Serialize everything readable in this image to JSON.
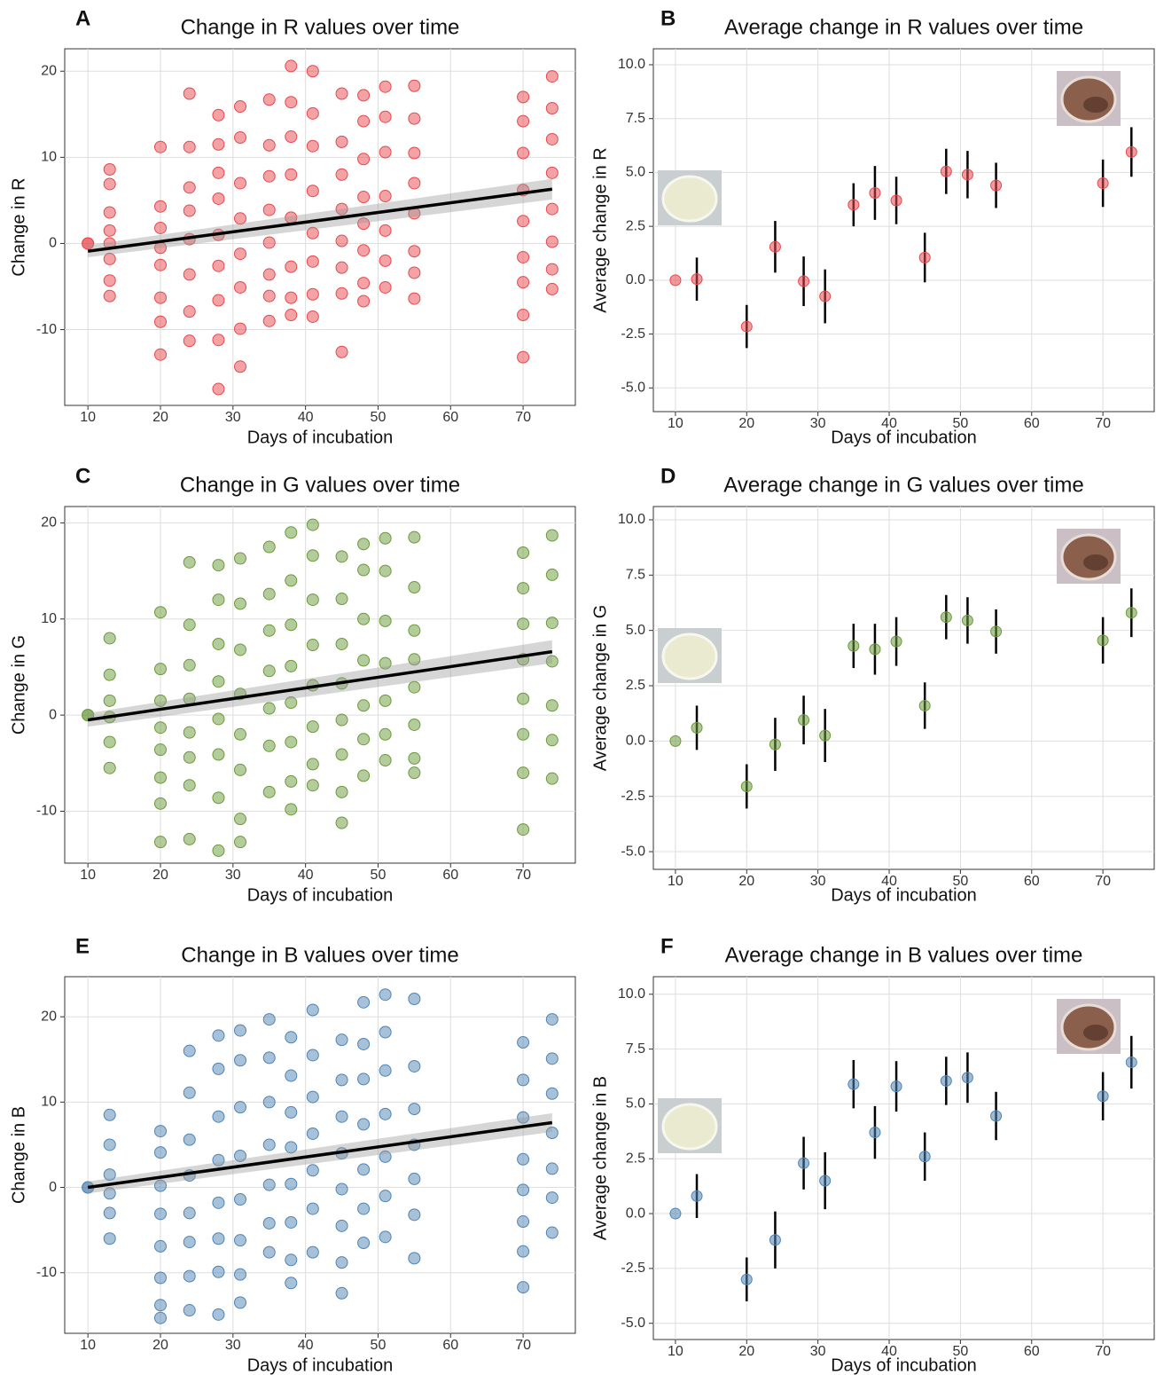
{
  "chart_data": [
    {
      "type": "scatter",
      "panel": "A",
      "title": "Change in R values over time",
      "xlabel": "Days of incubation",
      "ylabel": "Change in R",
      "color": "#e8474c",
      "xlim": [
        6.8,
        77.2
      ],
      "ylim": [
        -18.8,
        22.6
      ],
      "xticks": [
        10,
        20,
        30,
        40,
        50,
        60,
        70
      ],
      "yticks": [
        -10,
        0,
        10,
        20
      ],
      "grid": true,
      "trend": {
        "x": [
          10,
          74
        ],
        "y": [
          -0.9,
          6.3
        ],
        "lower": [
          -1.6,
          5.1
        ],
        "upper": [
          -0.2,
          7.5
        ]
      },
      "groups": [
        {
          "x": 10,
          "y": [
            0,
            0
          ]
        },
        {
          "x": 13,
          "y": [
            8.6,
            6.9,
            3.6,
            1.5,
            0,
            -1.8,
            -4.3,
            -6.1
          ]
        },
        {
          "x": 20,
          "y": [
            11.2,
            4.3,
            1.8,
            -0.5,
            -2.5,
            -6.3,
            -9.1,
            -12.9
          ]
        },
        {
          "x": 24,
          "y": [
            17.4,
            11.2,
            6.5,
            3.8,
            0.5,
            -3.6,
            -7.9,
            -11.3
          ]
        },
        {
          "x": 28,
          "y": [
            14.9,
            11.5,
            8.2,
            5.2,
            1.0,
            -2.6,
            -6.6,
            -11.2,
            -16.9
          ]
        },
        {
          "x": 31,
          "y": [
            15.9,
            12.3,
            7.0,
            2.9,
            -1.2,
            -5.1,
            -9.9,
            -14.3
          ]
        },
        {
          "x": 35,
          "y": [
            16.7,
            11.4,
            7.8,
            3.9,
            0.1,
            -3.6,
            -6.1,
            -9.0
          ]
        },
        {
          "x": 38,
          "y": [
            20.6,
            16.4,
            12.4,
            8.0,
            3.0,
            -2.7,
            -6.3,
            -8.3
          ]
        },
        {
          "x": 41,
          "y": [
            20.0,
            15.1,
            11.3,
            6.1,
            1.2,
            -2.1,
            -5.9,
            -8.5
          ]
        },
        {
          "x": 45,
          "y": [
            17.4,
            11.8,
            8.0,
            4.0,
            0.3,
            -2.8,
            -5.8,
            -12.6
          ]
        },
        {
          "x": 48,
          "y": [
            17.2,
            14.2,
            9.8,
            5.4,
            2.3,
            -0.8,
            -4.6,
            -6.7
          ]
        },
        {
          "x": 51,
          "y": [
            18.2,
            14.7,
            10.6,
            5.5,
            1.5,
            -2.0,
            -5.1
          ]
        },
        {
          "x": 55,
          "y": [
            18.3,
            14.5,
            10.5,
            7.0,
            3.5,
            -0.9,
            -3.4,
            -6.4
          ]
        },
        {
          "x": 70,
          "y": [
            17.0,
            14.2,
            10.5,
            6.2,
            2.6,
            -1.6,
            -4.5,
            -8.3,
            -13.2
          ]
        },
        {
          "x": 74,
          "y": [
            19.4,
            15.7,
            12.1,
            8.2,
            4.0,
            0.2,
            -3.0,
            -5.3
          ]
        }
      ]
    },
    {
      "type": "errorbar",
      "panel": "B",
      "title": "Average change in R values over time",
      "xlabel": "Days of incubation",
      "ylabel": "Average change in R",
      "color": "#e8474c",
      "xlim": [
        6.9,
        77.2
      ],
      "ylim": [
        -6.1,
        10.74
      ],
      "xticks": [
        10,
        20,
        30,
        40,
        50,
        60,
        70
      ],
      "yticks": [
        {
          "value": -5,
          "label": "-5.0"
        },
        -2.5,
        {
          "value": 0,
          "label": "0.0"
        },
        2.5,
        {
          "value": 5,
          "label": "5.0"
        },
        7.5,
        {
          "value": 10,
          "label": "10.0"
        }
      ],
      "grid": true,
      "x": [
        10,
        13,
        20,
        24,
        28,
        31,
        35,
        38,
        41,
        45,
        48,
        51,
        55,
        70,
        74
      ],
      "values": [
        0,
        0.05,
        -2.15,
        1.55,
        -0.05,
        -0.75,
        3.5,
        4.05,
        3.7,
        1.05,
        5.05,
        4.9,
        4.4,
        4.5,
        5.95
      ],
      "errors": [
        0,
        1.0,
        1.0,
        1.2,
        1.15,
        1.25,
        1.0,
        1.25,
        1.1,
        1.15,
        1.05,
        1.1,
        1.05,
        1.1,
        1.15
      ]
    },
    {
      "type": "scatter",
      "panel": "C",
      "title": "Change in G values over time",
      "xlabel": "Days of incubation",
      "ylabel": "Change in G",
      "color": "#6a9a3a",
      "xlim": [
        6.8,
        77.2
      ],
      "ylim": [
        -15.4,
        21.7
      ],
      "xticks": [
        10,
        20,
        30,
        40,
        50,
        60,
        70
      ],
      "yticks": [
        -10,
        0,
        10,
        20
      ],
      "grid": true,
      "trend": {
        "x": [
          10,
          74
        ],
        "y": [
          -0.5,
          6.6
        ],
        "lower": [
          -1.2,
          5.4
        ],
        "upper": [
          0.2,
          7.8
        ]
      },
      "groups": [
        {
          "x": 10,
          "y": [
            0,
            0
          ]
        },
        {
          "x": 13,
          "y": [
            8.0,
            4.2,
            1.5,
            -0.2,
            -2.8,
            -5.5
          ]
        },
        {
          "x": 20,
          "y": [
            10.7,
            4.8,
            1.5,
            -1.3,
            -3.6,
            -6.5,
            -9.2,
            -13.2
          ]
        },
        {
          "x": 24,
          "y": [
            15.9,
            9.4,
            5.2,
            1.7,
            -1.8,
            -4.4,
            -7.3,
            -12.9
          ]
        },
        {
          "x": 28,
          "y": [
            15.6,
            12.0,
            7.4,
            3.5,
            -0.4,
            -4.1,
            -8.6,
            -14.1
          ]
        },
        {
          "x": 31,
          "y": [
            16.3,
            11.6,
            6.8,
            2.2,
            -2.0,
            -5.7,
            -10.8,
            -13.2
          ]
        },
        {
          "x": 35,
          "y": [
            17.5,
            12.6,
            8.8,
            4.6,
            0.7,
            -3.2,
            -8.0
          ]
        },
        {
          "x": 38,
          "y": [
            19.0,
            14.0,
            9.4,
            5.1,
            1.3,
            -2.8,
            -6.9,
            -9.8
          ]
        },
        {
          "x": 41,
          "y": [
            19.8,
            16.6,
            12.0,
            7.3,
            3.1,
            -1.2,
            -5.1,
            -7.3
          ]
        },
        {
          "x": 45,
          "y": [
            16.5,
            12.1,
            7.4,
            3.3,
            -0.5,
            -4.1,
            -8.0,
            -11.2
          ]
        },
        {
          "x": 48,
          "y": [
            17.8,
            15.1,
            10.0,
            5.7,
            1.0,
            -2.5,
            -6.3
          ]
        },
        {
          "x": 51,
          "y": [
            18.4,
            15.0,
            9.8,
            5.4,
            1.5,
            -2.0,
            -4.7
          ]
        },
        {
          "x": 55,
          "y": [
            18.5,
            13.3,
            8.8,
            5.8,
            2.9,
            -1.0,
            -4.5,
            -6.0
          ]
        },
        {
          "x": 70,
          "y": [
            16.9,
            13.2,
            9.5,
            5.8,
            1.7,
            -2.0,
            -6.0,
            -11.9
          ]
        },
        {
          "x": 74,
          "y": [
            18.7,
            14.6,
            9.6,
            5.6,
            1.0,
            -2.6,
            -6.6
          ]
        }
      ]
    },
    {
      "type": "errorbar",
      "panel": "D",
      "title": "Average change in G values over time",
      "xlabel": "Days of incubation",
      "ylabel": "Average change in G",
      "color": "#6a9a3a",
      "xlim": [
        6.9,
        77.2
      ],
      "ylim": [
        -5.8,
        10.6
      ],
      "xticks": [
        10,
        20,
        30,
        40,
        50,
        60,
        70
      ],
      "yticks": [
        {
          "value": -5,
          "label": "-5.0"
        },
        -2.5,
        {
          "value": 0,
          "label": "0.0"
        },
        2.5,
        {
          "value": 5,
          "label": "5.0"
        },
        7.5,
        {
          "value": 10,
          "label": "10.0"
        }
      ],
      "grid": true,
      "x": [
        10,
        13,
        20,
        24,
        28,
        31,
        35,
        38,
        41,
        45,
        48,
        51,
        55,
        70,
        74
      ],
      "values": [
        0,
        0.6,
        -2.05,
        -0.15,
        0.95,
        0.25,
        4.3,
        4.15,
        4.5,
        1.6,
        5.6,
        5.45,
        4.95,
        4.55,
        5.8
      ],
      "errors": [
        0,
        1.0,
        1.0,
        1.2,
        1.1,
        1.2,
        1.0,
        1.15,
        1.1,
        1.05,
        1.0,
        1.05,
        1.0,
        1.05,
        1.1
      ]
    },
    {
      "type": "scatter",
      "panel": "E",
      "title": "Change in B values over time",
      "xlabel": "Days of incubation",
      "ylabel": "Change in B",
      "color": "#4f84b4",
      "xlim": [
        6.8,
        77.2
      ],
      "ylim": [
        -17.1,
        24.7
      ],
      "xticks": [
        10,
        20,
        30,
        40,
        50,
        60,
        70
      ],
      "yticks": [
        -10,
        0,
        10,
        20
      ],
      "grid": true,
      "trend": {
        "x": [
          10,
          74
        ],
        "y": [
          0,
          7.6
        ],
        "lower": [
          -0.7,
          6.5
        ],
        "upper": [
          0.7,
          8.7
        ]
      },
      "groups": [
        {
          "x": 10,
          "y": [
            0,
            0
          ]
        },
        {
          "x": 13,
          "y": [
            8.5,
            5.0,
            1.5,
            -0.7,
            -3.0,
            -6.0
          ]
        },
        {
          "x": 20,
          "y": [
            6.6,
            4.1,
            0.2,
            -3.1,
            -6.9,
            -10.6,
            -13.8,
            -15.3
          ]
        },
        {
          "x": 24,
          "y": [
            16.0,
            11.1,
            5.6,
            1.4,
            -3.0,
            -6.4,
            -10.4,
            -14.4
          ]
        },
        {
          "x": 28,
          "y": [
            17.8,
            13.9,
            8.3,
            3.2,
            -1.8,
            -6.0,
            -9.9,
            -14.9
          ]
        },
        {
          "x": 31,
          "y": [
            18.4,
            14.9,
            9.4,
            3.7,
            -1.4,
            -6.2,
            -10.2,
            -13.5
          ]
        },
        {
          "x": 35,
          "y": [
            19.7,
            15.2,
            10.0,
            5.0,
            0.3,
            -4.2,
            -7.6
          ]
        },
        {
          "x": 38,
          "y": [
            17.6,
            13.1,
            8.8,
            4.7,
            0.4,
            -4.1,
            -8.5,
            -11.2
          ]
        },
        {
          "x": 41,
          "y": [
            20.8,
            15.5,
            10.6,
            6.3,
            2.0,
            -2.5,
            -7.6
          ]
        },
        {
          "x": 45,
          "y": [
            17.3,
            12.6,
            8.3,
            4.0,
            -0.2,
            -4.5,
            -8.8,
            -12.4
          ]
        },
        {
          "x": 48,
          "y": [
            21.7,
            16.8,
            12.7,
            7.4,
            2.1,
            -2.5,
            -6.5
          ]
        },
        {
          "x": 51,
          "y": [
            22.6,
            18.2,
            13.7,
            8.6,
            3.6,
            -1.0,
            -5.8
          ]
        },
        {
          "x": 55,
          "y": [
            22.1,
            14.2,
            9.2,
            5.0,
            1.0,
            -3.2,
            -8.3
          ]
        },
        {
          "x": 70,
          "y": [
            17.0,
            12.6,
            8.2,
            3.3,
            -0.3,
            -4.0,
            -7.5,
            -11.7
          ]
        },
        {
          "x": 74,
          "y": [
            19.7,
            15.1,
            11.0,
            6.4,
            2.2,
            -1.2,
            -5.3
          ]
        }
      ]
    },
    {
      "type": "errorbar",
      "panel": "F",
      "title": "Average change in B values over time",
      "xlabel": "Days of incubation",
      "ylabel": "Average change in B",
      "color": "#4f84b4",
      "xlim": [
        6.9,
        77.2
      ],
      "ylim": [
        -5.74,
        10.8
      ],
      "xticks": [
        10,
        20,
        30,
        40,
        50,
        60,
        70
      ],
      "yticks": [
        {
          "value": -5,
          "label": "-5.0"
        },
        -2.5,
        {
          "value": 0,
          "label": "0.0"
        },
        2.5,
        {
          "value": 5,
          "label": "5.0"
        },
        7.5,
        {
          "value": 10,
          "label": "10.0"
        }
      ],
      "grid": true,
      "x": [
        10,
        13,
        20,
        24,
        28,
        31,
        35,
        38,
        41,
        45,
        48,
        51,
        55,
        70,
        74
      ],
      "values": [
        0,
        0.8,
        -3.0,
        -1.2,
        2.3,
        1.5,
        5.9,
        3.7,
        5.8,
        2.6,
        6.05,
        6.2,
        4.45,
        5.35,
        6.9
      ],
      "errors": [
        0,
        1.0,
        1.0,
        1.3,
        1.2,
        1.3,
        1.1,
        1.2,
        1.15,
        1.1,
        1.1,
        1.15,
        1.1,
        1.1,
        1.2
      ]
    }
  ]
}
